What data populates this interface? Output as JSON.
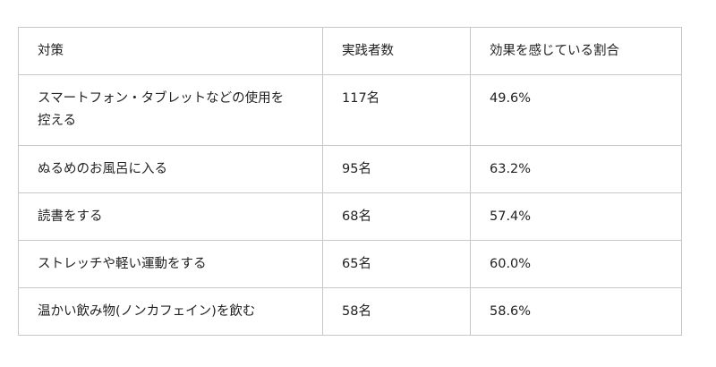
{
  "table": {
    "headers": [
      "対策",
      "実践者数",
      "効果を感じている割合"
    ],
    "rows": [
      [
        "スマートフォン・タブレットなどの使用を控える",
        "117名",
        "49.6%"
      ],
      [
        "ぬるめのお風呂に入る",
        "95名",
        "63.2%"
      ],
      [
        "読書をする",
        "68名",
        "57.4%"
      ],
      [
        "ストレッチや軽い運動をする",
        "65名",
        "60.0%"
      ],
      [
        "温かい飲み物(ノンカフェイン)を飲む",
        "58名",
        "58.6%"
      ]
    ]
  }
}
